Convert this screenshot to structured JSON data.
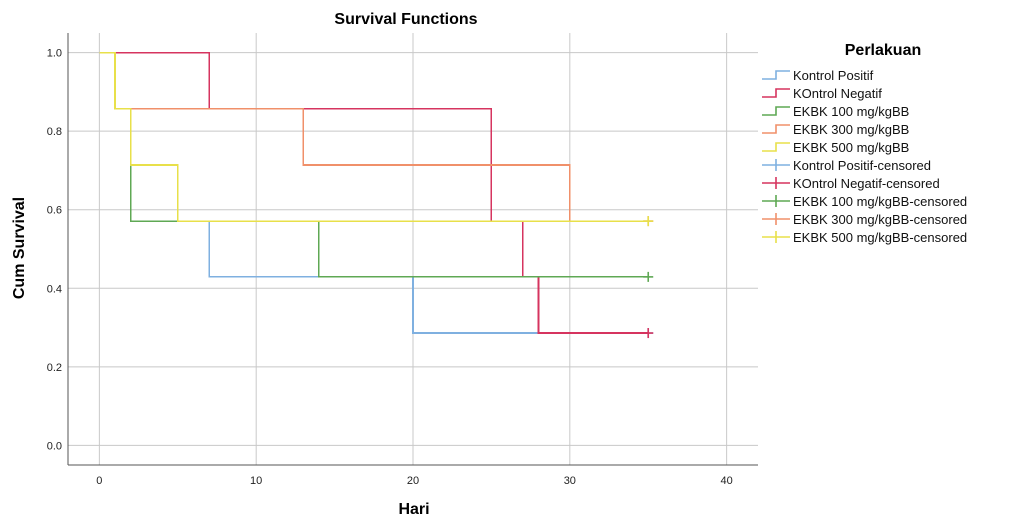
{
  "chart_data": {
    "type": "line",
    "step": true,
    "title": "Survival Functions",
    "xlabel": "Hari",
    "ylabel": "Cum Survival",
    "xlim": [
      -2,
      42
    ],
    "ylim": [
      -0.05,
      1.05
    ],
    "xticks": [
      0,
      10,
      20,
      30,
      40
    ],
    "yticks": [
      0.0,
      0.2,
      0.4,
      0.6,
      0.8,
      1.0
    ],
    "xtick_labels": [
      "0",
      "10",
      "20",
      "30",
      "40"
    ],
    "ytick_labels": [
      "0.0",
      "0.2",
      "0.4",
      "0.6",
      "0.8",
      "1.0"
    ],
    "grid": true,
    "legend_title": "Perlakuan",
    "legend_position": "right",
    "series": [
      {
        "name": "Kontrol Positif",
        "color": "#7fb0e0",
        "x": [
          0,
          1,
          2,
          7,
          20,
          35
        ],
        "y": [
          1.0,
          0.857,
          0.571,
          0.429,
          0.286,
          0.286
        ],
        "censored_at": 35
      },
      {
        "name": "KOntrol Negatif",
        "color": "#d6345f",
        "x": [
          0,
          7,
          25,
          27,
          28,
          35
        ],
        "y": [
          1.0,
          0.857,
          0.571,
          0.429,
          0.286,
          0.286
        ],
        "censored_at": 35
      },
      {
        "name": "EKBK 100 mg/kgBB",
        "color": "#5fa854",
        "x": [
          0,
          1,
          2,
          14,
          35
        ],
        "y": [
          1.0,
          0.857,
          0.571,
          0.429,
          0.429
        ],
        "censored_at": 35
      },
      {
        "name": "EKBK 300 mg/kgBB",
        "color": "#f0906a",
        "x": [
          0,
          1,
          13,
          19,
          30,
          35
        ],
        "y": [
          1.0,
          0.857,
          0.714,
          0.714,
          0.571,
          0.571
        ],
        "censored_at": 35
      },
      {
        "name": "EKBK 500 mg/kgBB",
        "color": "#e8e04a",
        "x": [
          0,
          1,
          2,
          5,
          35
        ],
        "y": [
          1.0,
          0.857,
          0.714,
          0.571,
          0.571
        ],
        "censored_at": 35
      }
    ],
    "legend_entries": [
      {
        "label": "Kontrol Positif",
        "color": "#7fb0e0",
        "kind": "step"
      },
      {
        "label": "KOntrol Negatif",
        "color": "#d6345f",
        "kind": "step"
      },
      {
        "label": "EKBK 100 mg/kgBB",
        "color": "#5fa854",
        "kind": "step"
      },
      {
        "label": "EKBK 300 mg/kgBB",
        "color": "#f0906a",
        "kind": "step"
      },
      {
        "label": "EKBK 500 mg/kgBB",
        "color": "#e8e04a",
        "kind": "step"
      },
      {
        "label": "Kontrol Positif-censored",
        "color": "#7fb0e0",
        "kind": "cross"
      },
      {
        "label": "KOntrol Negatif-censored",
        "color": "#d6345f",
        "kind": "cross"
      },
      {
        "label": "EKBK 100 mg/kgBB-censored",
        "color": "#5fa854",
        "kind": "cross"
      },
      {
        "label": "EKBK 300 mg/kgBB-censored",
        "color": "#f0906a",
        "kind": "cross"
      },
      {
        "label": "EKBK 500 mg/kgBB-censored",
        "color": "#e8e04a",
        "kind": "cross"
      }
    ]
  }
}
